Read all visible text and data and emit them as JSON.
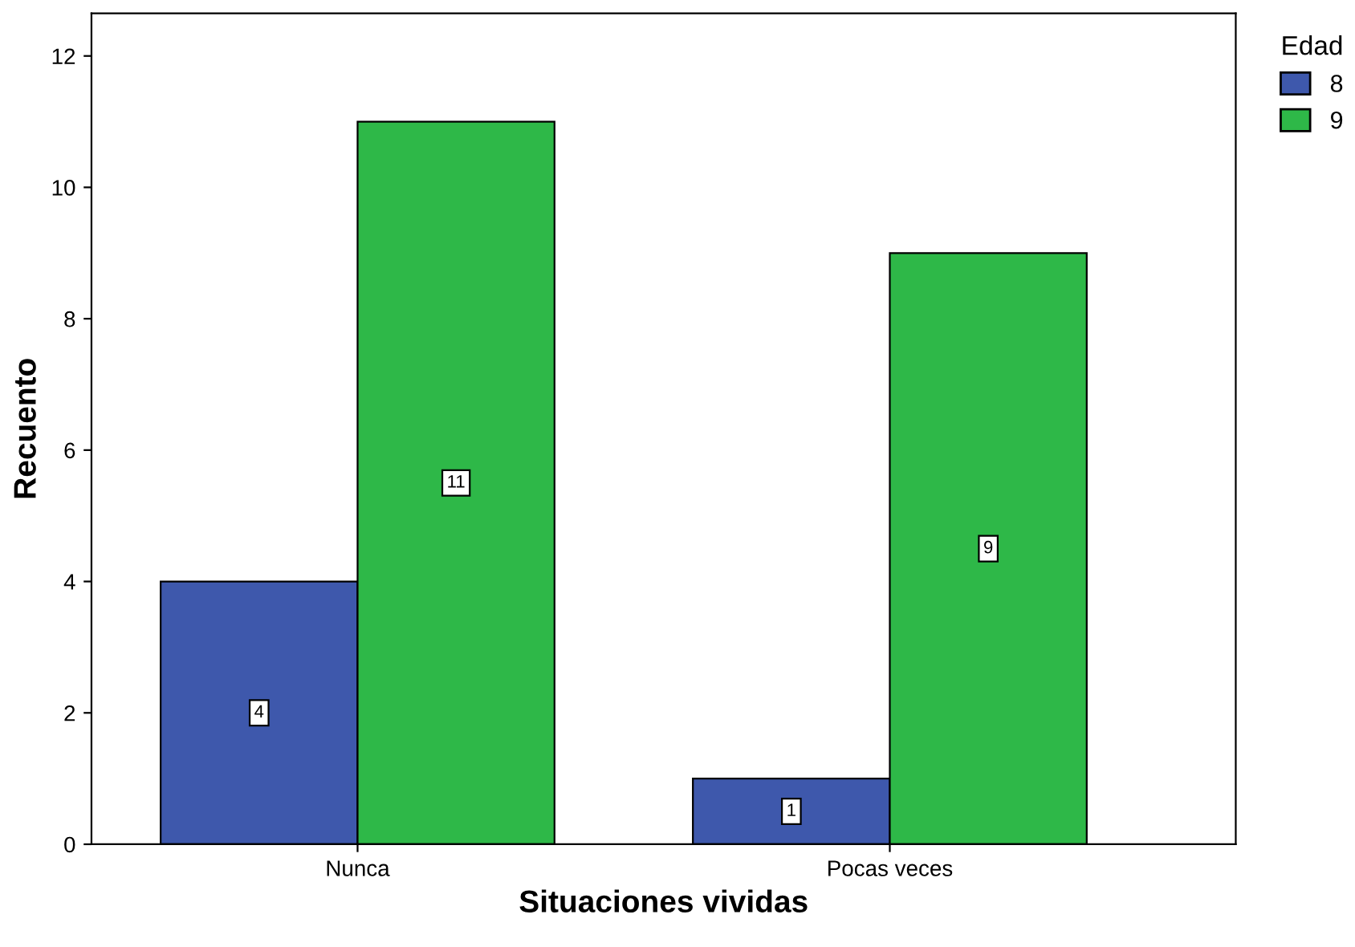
{
  "chart_data": {
    "type": "bar",
    "xlabel": "Situaciones vividas",
    "ylabel": "Recuento",
    "legend_title": "Edad",
    "categories": [
      "Nunca",
      "Pocas veces"
    ],
    "series": [
      {
        "name": "8",
        "color": "#3e58ac",
        "values": [
          4,
          1
        ]
      },
      {
        "name": "9",
        "color": "#2eb848",
        "values": [
          11,
          9
        ]
      }
    ],
    "ylim": [
      0,
      12.65
    ],
    "yticks": [
      0,
      2,
      4,
      6,
      8,
      10,
      12
    ],
    "grid": false,
    "legend": "top right",
    "data_labels": true
  }
}
